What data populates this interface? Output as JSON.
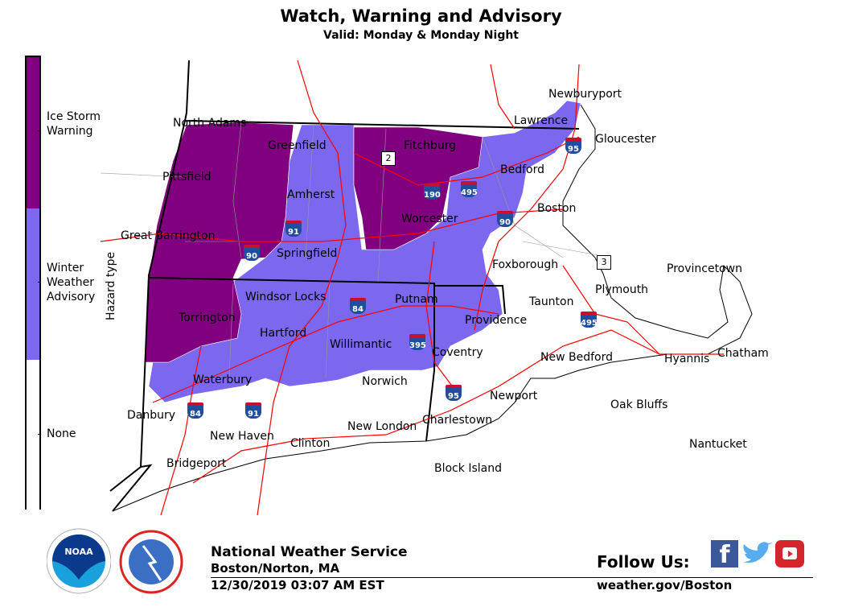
{
  "header": {
    "title": "Watch, Warning and Advisory",
    "subtitle": "Valid: Monday & Monday Night"
  },
  "legend": {
    "axis_label": "Hazard type",
    "items": [
      {
        "label": "Ice Storm Warning",
        "color": "#800080"
      },
      {
        "label": "Winter Weather Advisory",
        "color": "#7B68EE"
      },
      {
        "label": "None",
        "color": "#FFFFFF"
      }
    ]
  },
  "cities": [
    "North Adams",
    "Greenfield",
    "Fitchburg",
    "Newburyport",
    "Lawrence",
    "Gloucester",
    "Pittsfield",
    "Bedford",
    "Amherst",
    "Worcester",
    "Boston",
    "Great Barrington",
    "Springfield",
    "Foxborough",
    "Provincetown",
    "Plymouth",
    "Windsor Locks",
    "Putnam",
    "Taunton",
    "Torrington",
    "Providence",
    "Hartford",
    "Willimantic",
    "Coventry",
    "New Bedford",
    "Hyannis",
    "Chatham",
    "Waterbury",
    "Norwich",
    "Newport",
    "Oak Bluffs",
    "Danbury",
    "Charlestown",
    "New London",
    "New Haven",
    "Clinton",
    "Nantucket",
    "Bridgeport",
    "Block Island"
  ],
  "shields": [
    "95",
    "190",
    "495",
    "90",
    "91",
    "90",
    "84",
    "395",
    "495",
    "95",
    "84",
    "91"
  ],
  "routes": [
    "2",
    "3"
  ],
  "footer": {
    "org": "National Weather Service",
    "office": "Boston/Norton, MA",
    "timestamp": "12/30/2019 03:07 AM EST",
    "follow": "Follow Us:",
    "url": "weather.gov/Boston",
    "logos": [
      "NOAA",
      "NATIONAL WEATHER SERVICE"
    ]
  }
}
